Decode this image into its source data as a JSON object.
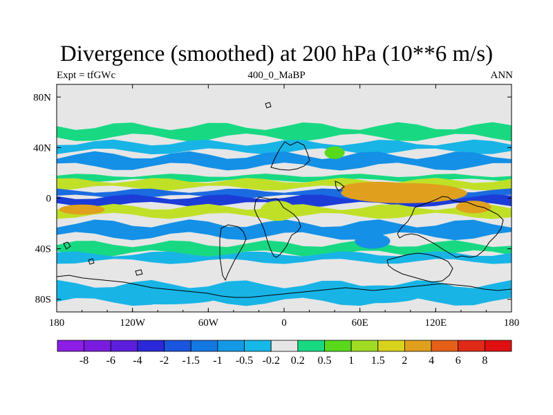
{
  "title": "Divergence (smoothed) at 200 hPa (10**6 m/s)",
  "subtitle": {
    "left": "Expt = tfGWc",
    "center": "400_0_MaBP",
    "right": "ANN"
  },
  "map": {
    "projection": "cylindrical-equidistant",
    "lon_range": [
      -180,
      180
    ],
    "lat_range": [
      -90,
      90
    ],
    "x_ticks": [
      {
        "lon": -180,
        "label": "180"
      },
      {
        "lon": -120,
        "label": "120W"
      },
      {
        "lon": -60,
        "label": "60W"
      },
      {
        "lon": 0,
        "label": "0"
      },
      {
        "lon": 60,
        "label": "60E"
      },
      {
        "lon": 120,
        "label": "120E"
      },
      {
        "lon": 180,
        "label": "180"
      }
    ],
    "y_ticks": [
      {
        "lat": 80,
        "label": "80N"
      },
      {
        "lat": 40,
        "label": "40N"
      },
      {
        "lat": 0,
        "label": "0"
      },
      {
        "lat": -40,
        "label": "40S"
      },
      {
        "lat": -80,
        "label": "80S"
      }
    ],
    "background_color": "#e6e6e6",
    "zonal_bands": [
      {
        "lat_top": 57,
        "lat_bottom": 48,
        "level": 0.5,
        "color": "#18d982"
      },
      {
        "lat_top": 44,
        "lat_bottom": 37,
        "level": -0.5,
        "color": "#18b4e6"
      },
      {
        "lat_top": 34,
        "lat_bottom": 25,
        "level": -1,
        "color": "#1490e6"
      },
      {
        "lat_top": 18,
        "lat_bottom": 14,
        "level": 0.5,
        "color": "#18d982"
      },
      {
        "lat_top": 14,
        "lat_bottom": 8,
        "level": 1.5,
        "color": "#c0e028"
      },
      {
        "lat_top": 6,
        "lat_bottom": 1,
        "level": -1.5,
        "color": "#1a6be0"
      },
      {
        "lat_top": 1,
        "lat_bottom": -5,
        "level": -2,
        "color": "#1c3cd8"
      },
      {
        "lat_top": -7,
        "lat_bottom": -14,
        "level": 1.5,
        "color": "#c0e028"
      },
      {
        "lat_top": -20,
        "lat_bottom": -30,
        "level": -1,
        "color": "#1490e6"
      },
      {
        "lat_top": -36,
        "lat_bottom": -44,
        "level": 0.5,
        "color": "#18d982"
      },
      {
        "lat_top": -44,
        "lat_bottom": -50,
        "level": -0.2,
        "color": "#18b4e6"
      },
      {
        "lat_top": -68,
        "lat_bottom": -82,
        "level": -0.5,
        "color": "#18b4e6"
      }
    ],
    "blobs": [
      {
        "lon": 95,
        "lat": 4,
        "rx_deg": 50,
        "ry_deg": 8,
        "level": 2,
        "color": "#e0a01e"
      },
      {
        "lon": 75,
        "lat": 8,
        "rx_deg": 30,
        "ry_deg": 5,
        "level": 2,
        "color": "#e0a01e"
      },
      {
        "lon": 150,
        "lat": -7,
        "rx_deg": 14,
        "ry_deg": 5,
        "level": 2,
        "color": "#e0a01e"
      },
      {
        "lon": -160,
        "lat": -9,
        "rx_deg": 18,
        "ry_deg": 4,
        "level": 2,
        "color": "#e0a01e"
      },
      {
        "lon": -5,
        "lat": -10,
        "rx_deg": 14,
        "ry_deg": 8,
        "level": 1.5,
        "color": "#c0e028"
      },
      {
        "lon": 40,
        "lat": 36,
        "rx_deg": 8,
        "ry_deg": 5,
        "level": 1,
        "color": "#58d91c"
      },
      {
        "lon": 70,
        "lat": -34,
        "rx_deg": 14,
        "ry_deg": 6,
        "level": -1,
        "color": "#1490e6"
      },
      {
        "lon": -95,
        "lat": -78,
        "rx_deg": 45,
        "ry_deg": 6,
        "level": -0.5,
        "color": "#18b4e6"
      },
      {
        "lon": 75,
        "lat": -76,
        "rx_deg": 35,
        "ry_deg": 7,
        "level": -0.5,
        "color": "#18b4e6"
      }
    ]
  },
  "colorbar": {
    "levels": [
      "-8",
      "-6",
      "-4",
      "-2",
      "-1.5",
      "-1",
      "-0.5",
      "-0.2",
      "0.2",
      "0.5",
      "1",
      "1.5",
      "2",
      "4",
      "6",
      "8"
    ],
    "colors": [
      "#8c1ee6",
      "#7a1ce0",
      "#5d1edc",
      "#2a28d8",
      "#1a55de",
      "#1478e2",
      "#1499e6",
      "#16b8e8",
      "#e6e6e6",
      "#18d982",
      "#58d91c",
      "#a0dc24",
      "#d8d21c",
      "#e0a01e",
      "#e6601a",
      "#e02a18",
      "#e01010"
    ]
  }
}
